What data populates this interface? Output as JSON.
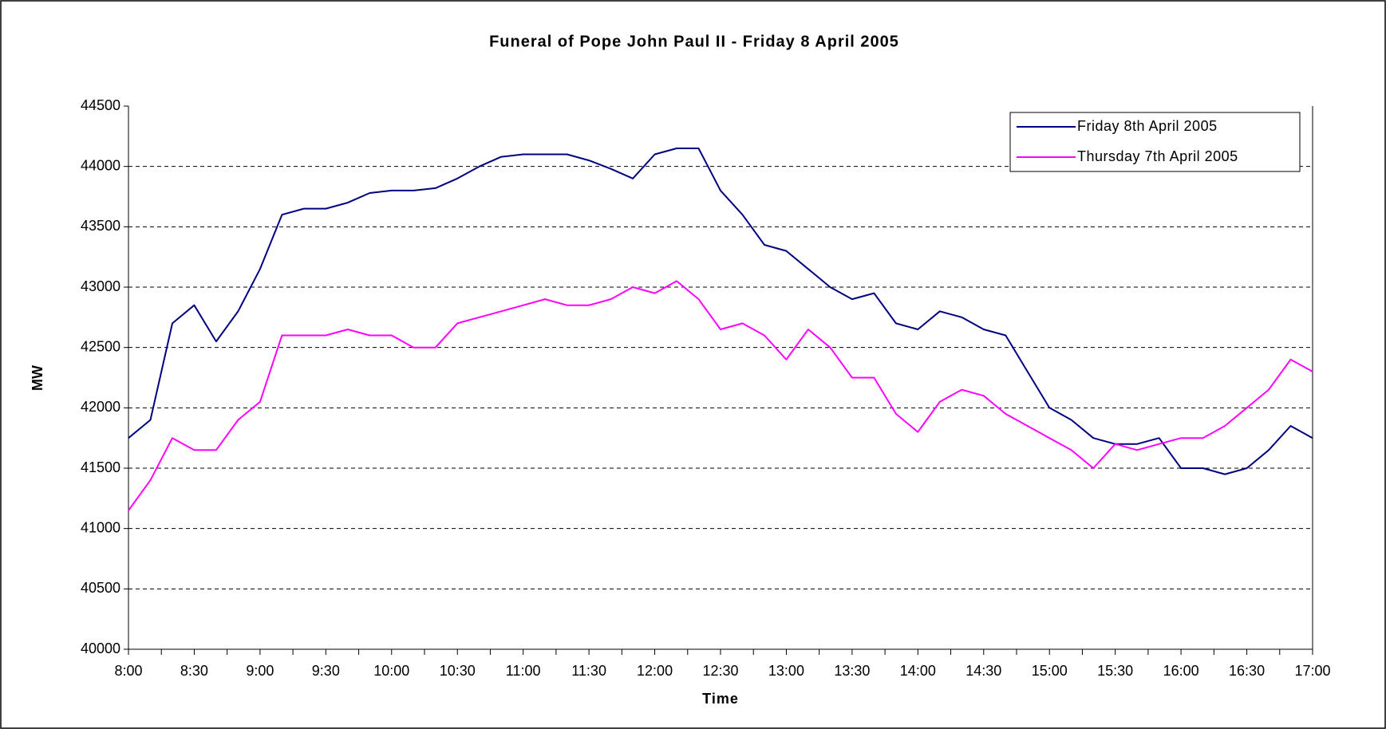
{
  "chart_data": {
    "type": "line",
    "title": "Funeral of Pope John Paul II - Friday 8 April 2005",
    "x_label": "Time",
    "y_label": "MW",
    "categories": [
      "8:00",
      null,
      null,
      "8:30",
      null,
      null,
      "9:00",
      null,
      null,
      "9:30",
      null,
      null,
      "10:00",
      null,
      null,
      "10:30",
      null,
      null,
      "11:00",
      null,
      null,
      "11:30",
      null,
      null,
      "12:00",
      null,
      null,
      "12:30",
      null,
      null,
      "13:00",
      null,
      null,
      "13:30",
      null,
      null,
      "14:00",
      null,
      null,
      "14:30",
      null,
      null,
      "15:00",
      null,
      null,
      "15:30",
      null,
      null,
      "16:00",
      null,
      null,
      "16:30",
      null,
      null,
      "17:00"
    ],
    "series": [
      {
        "name": "Friday 8th April 2005",
        "color": "#000080",
        "values": [
          41750,
          41900,
          42700,
          42850,
          42550,
          42800,
          43150,
          43600,
          43650,
          43650,
          43700,
          43780,
          43800,
          43800,
          43820,
          43900,
          44000,
          44080,
          44100,
          44100,
          44100,
          44050,
          43980,
          43900,
          44100,
          44150,
          44150,
          43800,
          43600,
          43350,
          43300,
          43150,
          43000,
          42900,
          42950,
          42700,
          42650,
          42800,
          42750,
          42650,
          42600,
          42300,
          42000,
          41900,
          41750,
          41700,
          41700,
          41750,
          41500,
          41500,
          41450,
          41500,
          41650,
          41850,
          41750
        ]
      },
      {
        "name": "Thursday 7th April 2005",
        "color": "#ff00ff",
        "values": [
          41150,
          41400,
          41750,
          41650,
          41650,
          41900,
          42050,
          42600,
          42600,
          42600,
          42650,
          42600,
          42600,
          42500,
          42500,
          42700,
          42750,
          42800,
          42850,
          42900,
          42850,
          42850,
          42900,
          43000,
          42950,
          43050,
          42900,
          42650,
          42700,
          42600,
          42400,
          42650,
          42500,
          42250,
          42250,
          41950,
          41800,
          42050,
          42150,
          42100,
          41950,
          41850,
          41750,
          41650,
          41500,
          41700,
          41650,
          41700,
          41750,
          41750,
          41850,
          42000,
          42150,
          42400,
          42300
        ]
      }
    ],
    "ylim": [
      40000,
      44500
    ],
    "yticks": [
      40000,
      40500,
      41000,
      41500,
      42000,
      42500,
      43000,
      43500,
      44000,
      44500
    ],
    "grid": true,
    "legend": "upper right"
  }
}
